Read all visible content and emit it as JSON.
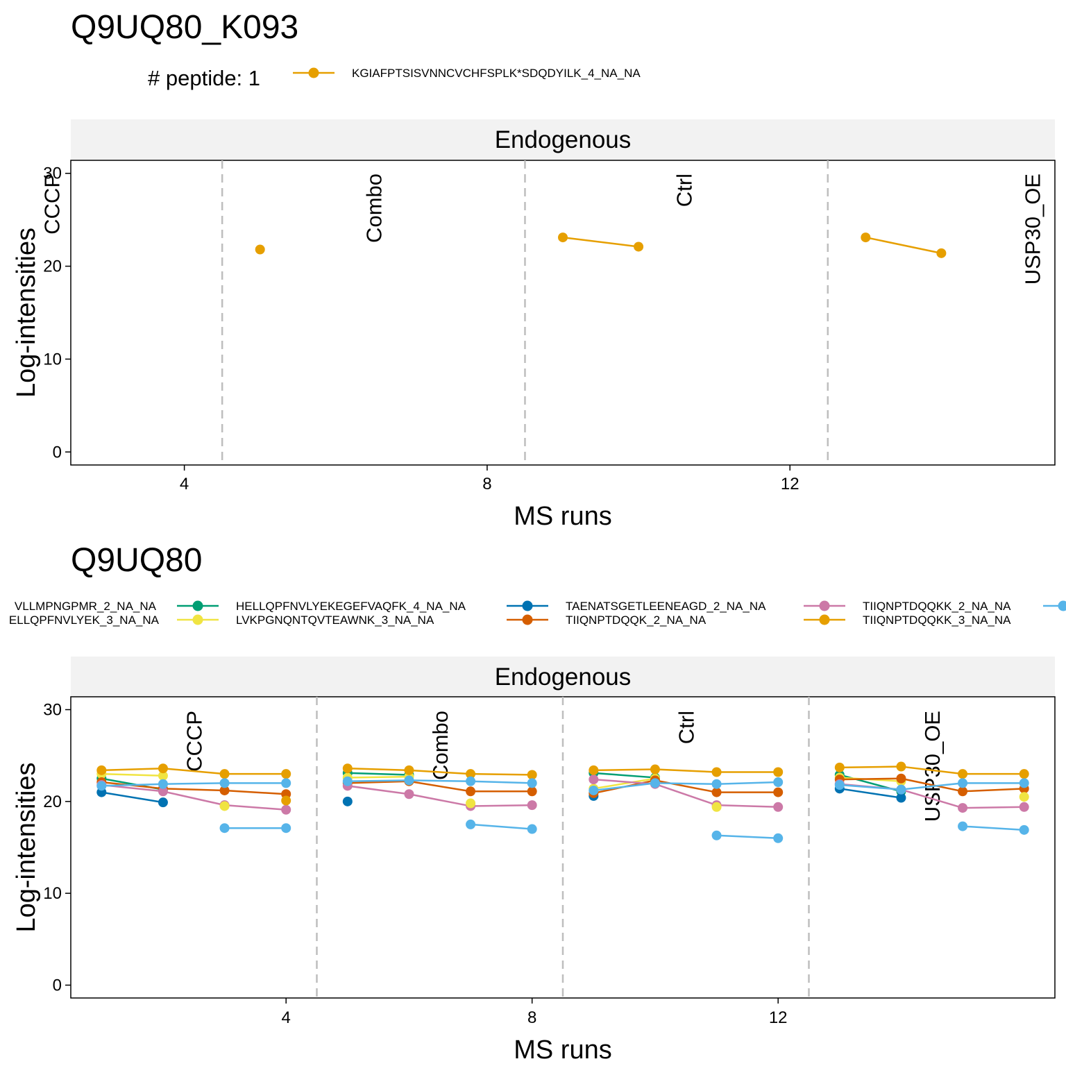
{
  "chart_data": [
    {
      "type": "line",
      "title": "Q9UQ80_K093",
      "strip_label": "Endogenous",
      "xlabel": "MS runs",
      "ylabel": "Log-intensities",
      "ylim": [
        0,
        30
      ],
      "xlim": [
        2.5,
        15.5
      ],
      "yticks": [
        0,
        10,
        20,
        30
      ],
      "xticks": [
        4,
        8,
        12
      ],
      "grid": false,
      "legend": {
        "placement": "top",
        "title": "# peptide: 1",
        "entries": [
          {
            "name": "KGIAFPTSISVNNCVCHFSPLK*SDQDYILK_4_NA_NA",
            "color": "#E69F00"
          }
        ]
      },
      "groups": [
        {
          "label": "CCCP",
          "runs": [
            1,
            4
          ]
        },
        {
          "label": "Combo",
          "runs": [
            5,
            8
          ]
        },
        {
          "label": "Ctrl",
          "runs": [
            9,
            12
          ]
        },
        {
          "label": "USP30_OE",
          "runs": [
            13,
            16
          ]
        }
      ],
      "series": [
        {
          "name": "KGIAFPTSISVNNCVCHFSPLK*SDQDYILK_4_NA_NA",
          "color": "#E69F00",
          "points": [
            [
              5,
              21.8
            ],
            [
              9,
              23.1
            ],
            [
              10,
              22.1
            ],
            [
              13,
              23.1
            ],
            [
              14,
              21.4
            ]
          ]
        }
      ]
    },
    {
      "type": "line",
      "title": "Q9UQ80",
      "strip_label": "Endogenous",
      "xlabel": "MS runs",
      "ylabel": "Log-intensities",
      "ylim": [
        0,
        30
      ],
      "xlim": [
        0.5,
        16.5
      ],
      "yticks": [
        0,
        10,
        20,
        30
      ],
      "xticks": [
        4,
        8,
        12
      ],
      "grid": false,
      "legend": {
        "placement": "top",
        "entries": [
          {
            "name": "VLLMPNGPMR_2_NA_NA",
            "color": "#000000"
          },
          {
            "name": "ELLQPFNVLYEK_3_NA_NA",
            "color": "#999999"
          },
          {
            "name": "HELLQPFNVLYEKEGEFVAQFK_4_NA_NA",
            "color": "#009E73"
          },
          {
            "name": "LVKPGNQNTQVTEAWNK_3_NA_NA",
            "color": "#F0E442"
          },
          {
            "name": "TAENATSGETLEENEAGD_2_NA_NA",
            "color": "#0072B2"
          },
          {
            "name": "TIIQNPTDQQK_2_NA_NA",
            "color": "#D55E00"
          },
          {
            "name": "TIIQNPTDQQKK_2_NA_NA",
            "color": "#CC79A7"
          },
          {
            "name": "TIIQNPTDQQKK_3_NA_NA",
            "color": "#E69F00"
          }
        ]
      },
      "groups": [
        {
          "label": "CCCP",
          "runs": [
            1,
            4
          ]
        },
        {
          "label": "Combo",
          "runs": [
            5,
            8
          ]
        },
        {
          "label": "Ctrl",
          "runs": [
            9,
            12
          ]
        },
        {
          "label": "USP30_OE",
          "runs": [
            13,
            16
          ]
        }
      ],
      "series": [
        {
          "name": "HELLQPFNVLYEKEGEFVAQFK_4_NA_NA",
          "color": "#009E73",
          "points": [
            [
              1,
              22.5
            ],
            [
              2,
              21.3
            ],
            [
              5,
              23.1
            ],
            [
              6,
              22.9
            ],
            [
              9,
              23.1
            ],
            [
              10,
              22.6
            ],
            [
              13,
              22.9
            ],
            [
              14,
              21.1
            ]
          ]
        },
        {
          "name": "LVKPGNQNTQVTEAWNK_3_NA_NA",
          "color": "#F0E442",
          "points": [
            [
              1,
              23.0
            ],
            [
              2,
              22.8
            ],
            [
              5,
              22.6
            ],
            [
              6,
              22.7
            ],
            [
              9,
              21.4
            ],
            [
              10,
              22.5
            ],
            [
              13,
              22.6
            ],
            [
              14,
              22.2
            ]
          ]
        },
        {
          "name": "TAENATSGETLEENEAGD_2_NA_NA",
          "color": "#0072B2",
          "points": [
            [
              1,
              21.0
            ],
            [
              2,
              19.9
            ],
            [
              5,
              20.0
            ],
            [
              9,
              20.6
            ],
            [
              13,
              21.4
            ],
            [
              14,
              20.4
            ]
          ]
        },
        {
          "name": "TIIQNPTDQQK_2_NA_NA",
          "color": "#D55E00",
          "points": [
            [
              1,
              22.1
            ],
            [
              2,
              21.4
            ],
            [
              3,
              21.2
            ],
            [
              4,
              20.8
            ],
            [
              5,
              22.0
            ],
            [
              6,
              22.2
            ],
            [
              7,
              21.1
            ],
            [
              8,
              21.1
            ],
            [
              9,
              20.9
            ],
            [
              10,
              22.3
            ],
            [
              11,
              21.0
            ],
            [
              12,
              21.0
            ],
            [
              13,
              22.4
            ],
            [
              14,
              22.5
            ],
            [
              15,
              21.1
            ],
            [
              16,
              21.4
            ]
          ]
        },
        {
          "name": "TIIQNPTDQQKK_2_NA_NA",
          "color": "#CC79A7",
          "points": [
            [
              1,
              21.8
            ],
            [
              2,
              21.1
            ],
            [
              3,
              19.6
            ],
            [
              4,
              19.1
            ],
            [
              5,
              21.7
            ],
            [
              6,
              20.8
            ],
            [
              7,
              19.5
            ],
            [
              8,
              19.6
            ],
            [
              9,
              22.4
            ],
            [
              10,
              21.9
            ],
            [
              11,
              19.6
            ],
            [
              12,
              19.4
            ],
            [
              13,
              21.9
            ],
            [
              14,
              21.3
            ],
            [
              15,
              19.3
            ],
            [
              16,
              19.4
            ]
          ]
        },
        {
          "name": "TIIQNPTDQQKK_3_NA_NA",
          "color": "#E69F00",
          "points": [
            [
              1,
              23.4
            ],
            [
              2,
              23.6
            ],
            [
              3,
              23.0
            ],
            [
              4,
              23.0
            ],
            [
              5,
              23.6
            ],
            [
              6,
              23.4
            ],
            [
              7,
              23.0
            ],
            [
              8,
              22.9
            ],
            [
              9,
              23.4
            ],
            [
              10,
              23.5
            ],
            [
              11,
              23.2
            ],
            [
              12,
              23.2
            ],
            [
              13,
              23.7
            ],
            [
              14,
              23.8
            ],
            [
              15,
              23.0
            ],
            [
              16,
              23.0
            ]
          ]
        },
        {
          "name": "",
          "color": "#56B4E9",
          "points": [
            [
              1,
              21.7
            ],
            [
              2,
              21.9
            ],
            [
              3,
              22.0
            ],
            [
              4,
              22.0
            ],
            [
              5,
              22.2
            ],
            [
              6,
              22.3
            ],
            [
              7,
              22.2
            ],
            [
              8,
              22.0
            ],
            [
              9,
              21.2
            ],
            [
              10,
              22.0
            ],
            [
              11,
              21.9
            ],
            [
              12,
              22.1
            ],
            [
              13,
              21.8
            ],
            [
              14,
              21.3
            ],
            [
              15,
              22.0
            ],
            [
              16,
              22.0
            ]
          ]
        },
        {
          "name": "",
          "color": "#56B4E9",
          "points": [
            [
              3,
              17.1
            ],
            [
              4,
              17.1
            ],
            [
              7,
              17.5
            ],
            [
              8,
              17.0
            ],
            [
              11,
              16.3
            ],
            [
              12,
              16.0
            ],
            [
              15,
              17.3
            ],
            [
              16,
              16.9
            ]
          ]
        },
        {
          "name": "",
          "color": "#F0E442",
          "points": [
            [
              3,
              19.5
            ],
            [
              7,
              19.8
            ],
            [
              11,
              19.4
            ],
            [
              16,
              20.5
            ]
          ],
          "no_line": true
        },
        {
          "name": "",
          "color": "#E69F00",
          "points": [
            [
              4,
              20.1
            ]
          ],
          "no_line": true
        }
      ]
    }
  ]
}
